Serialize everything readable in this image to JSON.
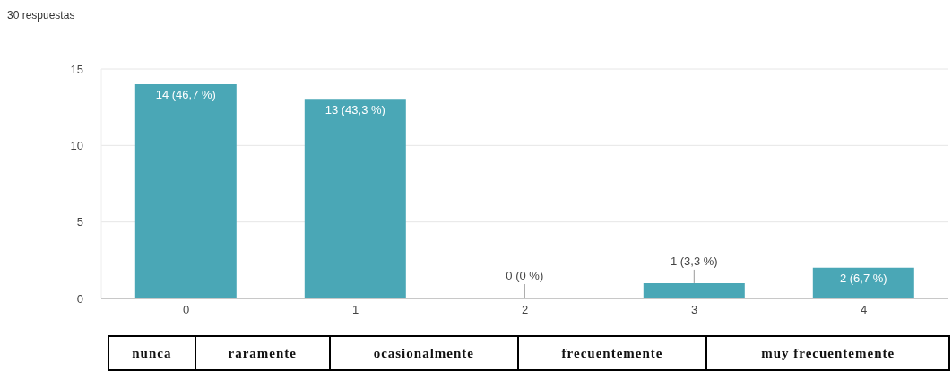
{
  "chart_data": {
    "type": "bar",
    "subtitle": "30 respuestas",
    "categories": [
      "0",
      "1",
      "2",
      "3",
      "4"
    ],
    "values": [
      14,
      13,
      0,
      1,
      2
    ],
    "color": "#4aa7b6",
    "value_labels": [
      "14 (46,7 %)",
      "13 (43,3 %)",
      "0 (0 %)",
      "1 (3,3 %)",
      "2 (6,7 %)"
    ],
    "ylim": [
      0,
      15
    ],
    "yticks": [
      0,
      5,
      10,
      15
    ],
    "grid": "y",
    "annotations": [
      "nunca",
      "raramente",
      "ocasionalmente",
      "frecuentemente",
      "muy frecuentemente"
    ]
  }
}
